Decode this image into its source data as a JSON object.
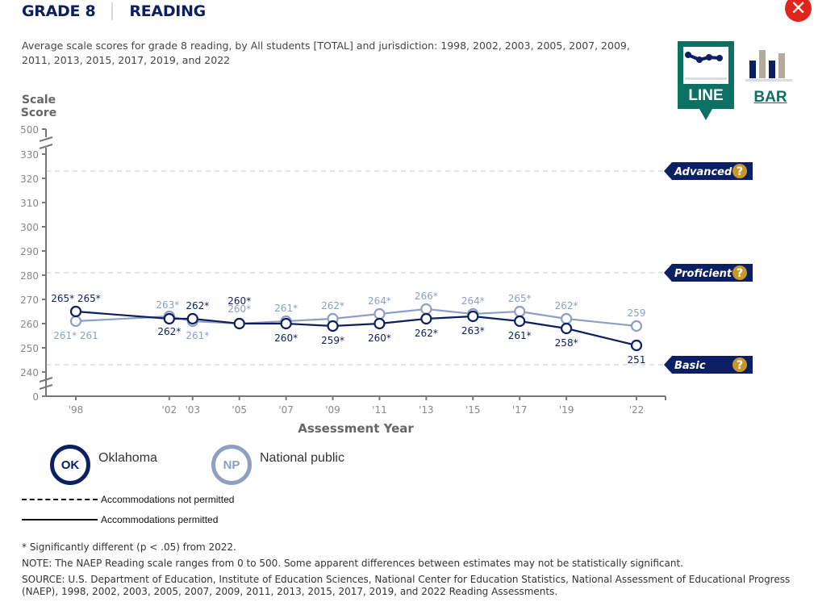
{
  "header": {
    "grade": "GRADE 8",
    "subject": "READING"
  },
  "close_icon": "close-icon",
  "subtitle": "Average scale scores for grade 8 reading, by All students [TOTAL] and jurisdiction: 1998, 2002, 2003, 2005, 2007, 2009, 2011, 2013, 2015, 2017, 2019, and 2022",
  "view_toggle": {
    "line_label": "LINE",
    "bar_label": "BAR",
    "selected": "LINE"
  },
  "colors": {
    "oklahoma": "#0d1f63",
    "national": "#8e9fc4",
    "achievement_tag": "#0d1f63",
    "help_badge": "#c9982b",
    "toggle": "#0d7064",
    "axis": "#777777"
  },
  "chart_data": {
    "type": "line",
    "title": "Average scale scores for grade 8 reading",
    "ylabel": "Scale Score",
    "xlabel": "Assessment Year",
    "ylim": [
      240,
      330
    ],
    "y_break": {
      "top_label": "500",
      "bottom_label": "0"
    },
    "y_ticks": [
      240,
      250,
      260,
      270,
      280,
      290,
      300,
      310,
      320,
      330
    ],
    "x": [
      1998,
      2002,
      2003,
      2005,
      2007,
      2009,
      2011,
      2013,
      2015,
      2017,
      2019,
      2022
    ],
    "x_tick_labels": [
      "'98",
      "'02",
      "'03",
      "'05",
      "'07",
      "'09",
      "'11",
      "'13",
      "'15",
      "'17",
      "'19",
      "'22"
    ],
    "achievement_levels": [
      {
        "name": "Advanced",
        "value": 323
      },
      {
        "name": "Proficient",
        "value": 281
      },
      {
        "name": "Basic",
        "value": 243
      }
    ],
    "series": [
      {
        "name": "Oklahoma",
        "abbr": "OK",
        "values": [
          265,
          262,
          262,
          260,
          260,
          259,
          260,
          262,
          263,
          261,
          258,
          251
        ],
        "labels": [
          "265* 265*",
          "262*",
          "262*",
          "260*",
          "260*",
          "259*",
          "260*",
          "262*",
          "263*",
          "261*",
          "258*",
          "251"
        ]
      },
      {
        "name": "National public",
        "abbr": "NP",
        "values": [
          261,
          263,
          261,
          260,
          261,
          262,
          264,
          266,
          264,
          265,
          262,
          259
        ],
        "labels": [
          "261* 261",
          "263*",
          "261*",
          "260*",
          "261*",
          "262*",
          "264*",
          "266*",
          "264*",
          "265*",
          "262*",
          "259"
        ]
      }
    ]
  },
  "legend": {
    "series": [
      {
        "abbr": "OK",
        "name": "Oklahoma"
      },
      {
        "abbr": "NP",
        "name": "National public"
      }
    ],
    "accommodations_not_permitted": "Accommodations not permitted",
    "accommodations_permitted": "Accommodations permitted"
  },
  "notes": {
    "significance": "* Significantly different (p < .05) from 2022.",
    "note": "NOTE: The NAEP Reading scale ranges from 0 to 500. Some apparent differences between estimates may not be statistically significant.",
    "source": "SOURCE: U.S. Department of Education, Institute of Education Sciences, National Center for Education Statistics, National Assessment of Educational Progress (NAEP), 1998, 2002, 2003, 2005, 2007, 2009, 2011, 2013, 2015, 2017, 2019, and 2022 Reading Assessments."
  }
}
